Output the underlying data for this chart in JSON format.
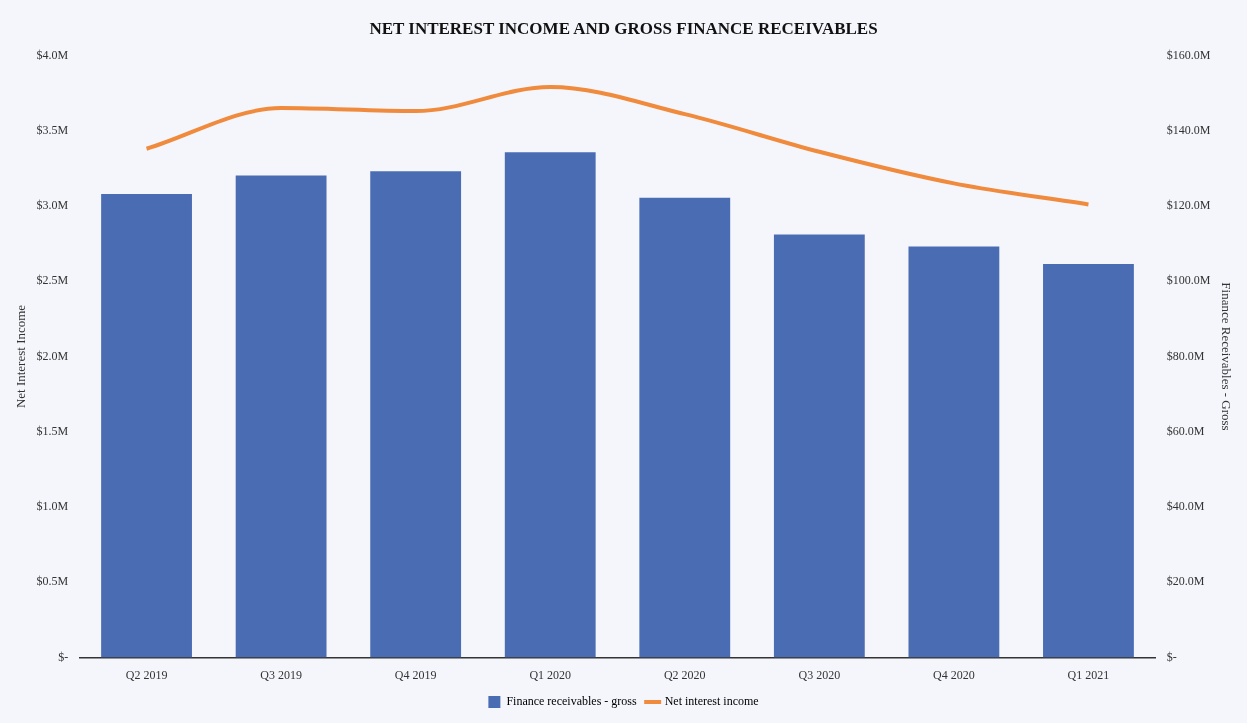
{
  "chart_data": {
    "type": "bar",
    "title": "NET INTEREST INCOME AND GROSS FINANCE RECEIVABLES",
    "ylabel": "Net Interest Income",
    "y2label": "Finance Receivables - Gross",
    "categories": [
      "Q2 2019",
      "Q3 2019",
      "Q4 2019",
      "Q1 2020",
      "Q2 2020",
      "Q3 2020",
      "Q4 2020",
      "Q1 2021"
    ],
    "series": [
      {
        "name": "Finance receivables - gross",
        "axis": "y2",
        "color": "#4a6cb3",
        "values": [
          123.2,
          128.1,
          129.2,
          134.3,
          122.2,
          112.4,
          109.2,
          104.6
        ]
      },
      {
        "name": "Net interest income",
        "type": "line",
        "axis": "y",
        "color": "#f08a3c",
        "values": [
          3.38,
          3.65,
          3.63,
          3.79,
          3.61,
          3.36,
          3.15,
          3.01
        ]
      }
    ],
    "ylim": [
      0,
      4
    ],
    "yticks": [
      {
        "value": 0,
        "label": "$-"
      },
      {
        "value": 0.5,
        "label": "$0.5M"
      },
      {
        "value": 1,
        "label": "$1.0M"
      },
      {
        "value": 1.5,
        "label": "$1.5M"
      },
      {
        "value": 2,
        "label": "$2.0M"
      },
      {
        "value": 2.5,
        "label": "$2.5M"
      },
      {
        "value": 3,
        "label": "$3.0M"
      },
      {
        "value": 3.5,
        "label": "$3.5M"
      },
      {
        "value": 4,
        "label": "$4.0M"
      }
    ],
    "y2lim": [
      0,
      160
    ],
    "y2ticks": [
      {
        "value": 0,
        "label": "$-"
      },
      {
        "value": 20,
        "label": "$20.0M"
      },
      {
        "value": 40,
        "label": "$40.0M"
      },
      {
        "value": 60,
        "label": "$60.0M"
      },
      {
        "value": 80,
        "label": "$80.0M"
      },
      {
        "value": 100,
        "label": "$100.0M"
      },
      {
        "value": 120,
        "label": "$120.0M"
      },
      {
        "value": 140,
        "label": "$140.0M"
      },
      {
        "value": 160,
        "label": "$160.0M"
      }
    ],
    "legend": "bottom",
    "marker": "none"
  }
}
